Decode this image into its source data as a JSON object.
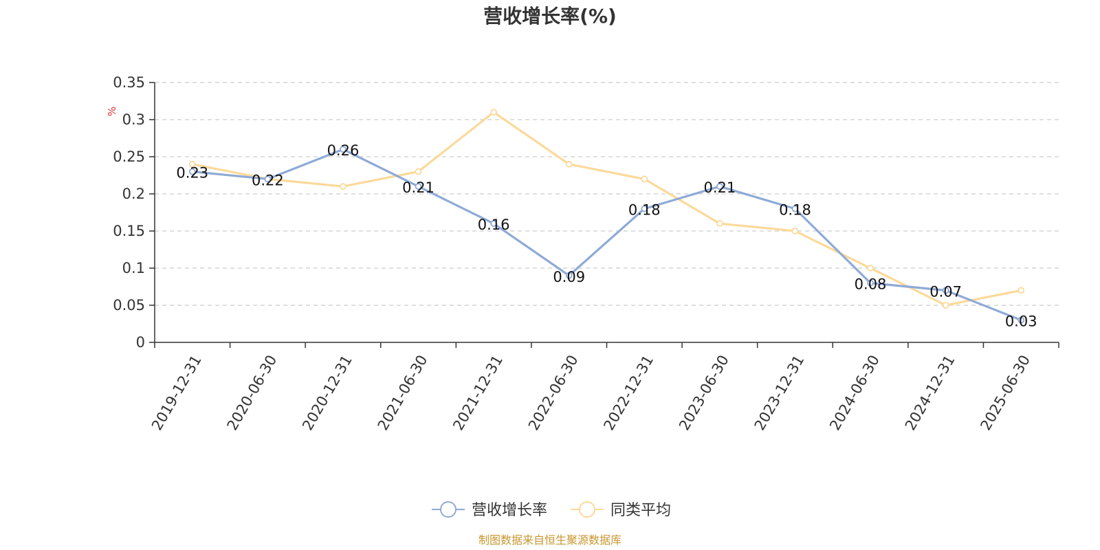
{
  "chart_data": {
    "type": "line",
    "title": "营收增长率(%)",
    "ylabel": "%",
    "xlabel": "",
    "categories": [
      "2019-12-31",
      "2020-06-30",
      "2020-12-31",
      "2021-06-30",
      "2021-12-31",
      "2022-06-30",
      "2022-12-31",
      "2023-06-30",
      "2023-12-31",
      "2024-06-30",
      "2024-12-31",
      "2025-06-30"
    ],
    "ylim": [
      0,
      0.35
    ],
    "yticks": [
      "0",
      "0.05",
      "0.1",
      "0.15",
      "0.2",
      "0.25",
      "0.3",
      "0.35"
    ],
    "grid": true,
    "legend_position": "bottom-center",
    "series": [
      {
        "name": "营收增长率",
        "color": "#8eaad6",
        "show_labels": true,
        "values": [
          0.23,
          0.22,
          0.26,
          0.21,
          0.16,
          0.09,
          0.18,
          0.21,
          0.18,
          0.08,
          0.07,
          0.03
        ],
        "labels": [
          "0.23",
          "0.22",
          "0.26",
          "0.21",
          "0.16",
          "0.09",
          "0.18",
          "0.21",
          "0.18",
          "0.08",
          "0.07",
          "0.03"
        ]
      },
      {
        "name": "同类平均",
        "color": "#fcd999",
        "show_labels": false,
        "values": [
          0.24,
          0.22,
          0.21,
          0.23,
          0.31,
          0.24,
          0.22,
          0.16,
          0.15,
          0.1,
          0.05,
          0.07
        ]
      }
    ],
    "source": "制图数据来自恒生聚源数据库",
    "colors": {
      "ylabel": "#e03030",
      "source": "#c8962e",
      "grid": "#cccccc",
      "axis": "#333333"
    }
  }
}
